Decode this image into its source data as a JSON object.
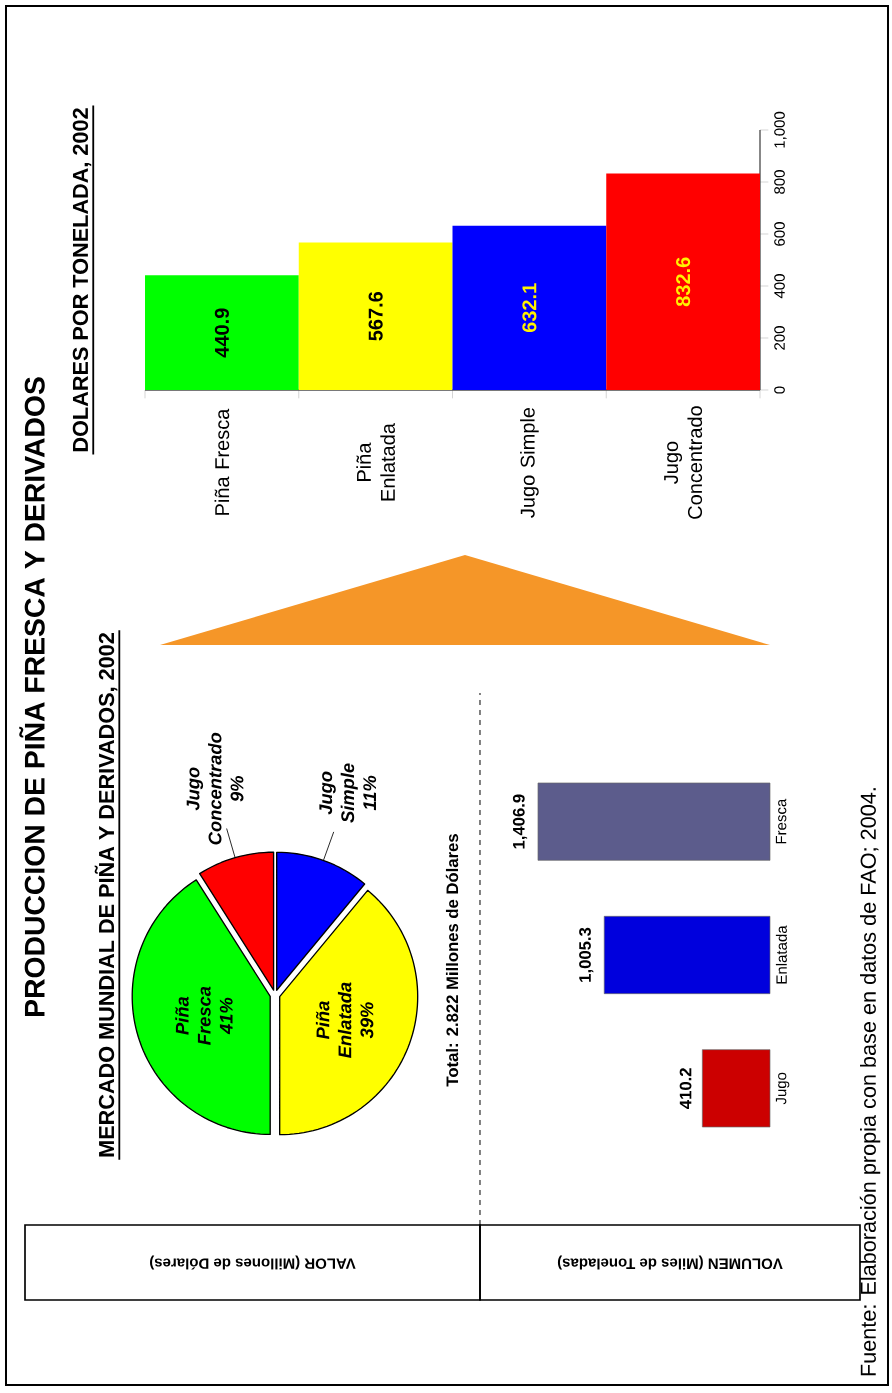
{
  "chart_data": [
    {
      "type": "pie",
      "title": "PRODUCCION DE PIÑA FRESCA Y DERIVADOS",
      "subtitle": "MERCADO MUNDIAL DE PIÑA Y DERIVADOS, 2002",
      "ylabel": "VALOR (Millones de Dólares)",
      "categories": [
        "Piña Fresca",
        "Jugo Concentrado",
        "Jugo Simple",
        "Piña Enlatada"
      ],
      "values": [
        41,
        9,
        11,
        39
      ],
      "value_labels": [
        "41%",
        "9%",
        "11%",
        "39%"
      ],
      "colors": [
        "#00ff00",
        "#ff0000",
        "#0000ff",
        "#ffff00"
      ],
      "annotations": [
        "Total:  2.822 Millones de Dólares"
      ]
    },
    {
      "type": "bar",
      "orientation": "horizontal",
      "annotations": [
        "VOLUMEN (Miles de Toneladas)"
      ],
      "categories": [
        "Fresca",
        "Enlatada",
        "Jugo"
      ],
      "values": [
        1406.9,
        1005.3,
        410.2
      ],
      "value_labels": [
        "1,406.9",
        "1,005.3",
        "410.2"
      ],
      "colors": [
        "#5c5c8c",
        "#0000dd",
        "#cc0000"
      ]
    },
    {
      "type": "bar",
      "title": "DOLARES POR TONELADA, 2002",
      "categories": [
        "Piña Fresca",
        "Piña Enlatada",
        "Jugo Simple",
        "Jugo Concentrado"
      ],
      "values": [
        440.9,
        567.6,
        632.1,
        832.6
      ],
      "colors": [
        "#00ff00",
        "#ffff00",
        "#0000ff",
        "#ff0000"
      ],
      "ylim": [
        0,
        1000
      ],
      "yticks": [
        0,
        200,
        400,
        600,
        800,
        {
          "value": 1000,
          "label": "1,000"
        }
      ],
      "data_labels": true,
      "annotations": [
        "Fuente: Elaboración propia con base en datos de FAO; 2004."
      ]
    }
  ]
}
